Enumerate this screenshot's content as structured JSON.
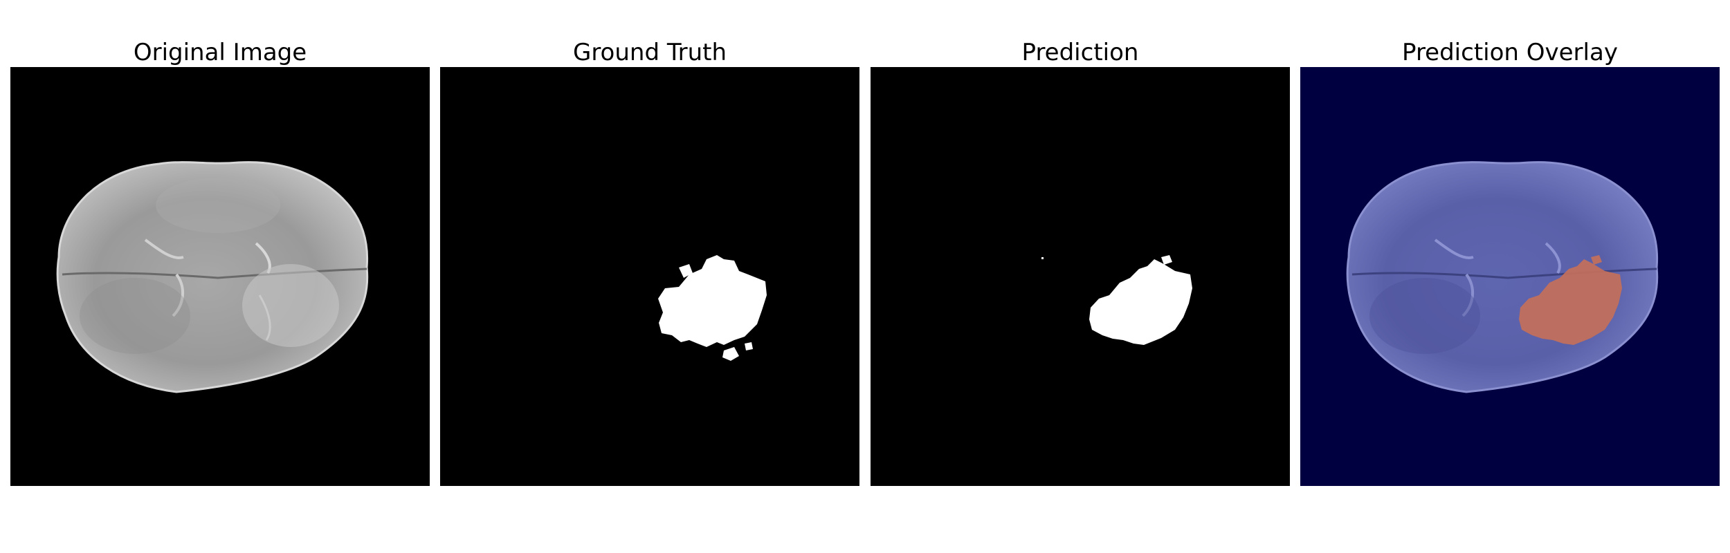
{
  "figure": {
    "panels": [
      {
        "title": "Original Image"
      },
      {
        "title": "Ground Truth"
      },
      {
        "title": "Prediction"
      },
      {
        "title": "Prediction Overlay"
      }
    ]
  },
  "colors": {
    "background_black": "#000000",
    "brain_gray": "#b4b4b4",
    "mask_white": "#ffffff",
    "overlay_background_navy": "#000040",
    "overlay_brain_blue": "#6a70b8",
    "overlay_tumor_orange": "#c4705a"
  }
}
